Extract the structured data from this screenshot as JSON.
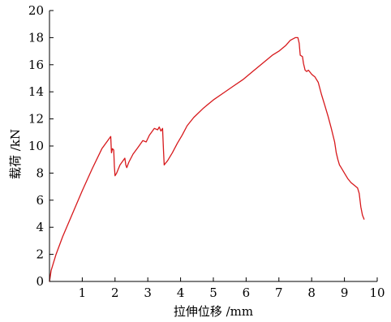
{
  "chart_data": {
    "type": "line",
    "title": "",
    "xlabel": "拉伸位移 /mm",
    "ylabel": "载荷 /kN",
    "xlim": [
      0,
      10
    ],
    "ylim": [
      0,
      20
    ],
    "x_ticks": [
      0,
      1,
      2,
      3,
      4,
      5,
      6,
      7,
      8,
      9,
      10
    ],
    "y_ticks": [
      0,
      2,
      4,
      6,
      8,
      10,
      12,
      14,
      16,
      18,
      20
    ],
    "x_tick_labels": [
      "",
      "1",
      "2",
      "3",
      "4",
      "5",
      "6",
      "7",
      "8",
      "9",
      "10"
    ],
    "y_tick_labels": [
      "0",
      "2",
      "4",
      "6",
      "8",
      "10",
      "12",
      "14",
      "16",
      "18",
      "20"
    ],
    "origin_label": "0",
    "grid": false,
    "legend": "none",
    "colors": {
      "series": "#d7191c",
      "axis": "#000000"
    },
    "series": [
      {
        "x": [
          0,
          0.05,
          0.2,
          0.4,
          0.7,
          1.0,
          1.3,
          1.6,
          1.87,
          1.89,
          1.92,
          1.96,
          1.98,
          2.0,
          2.05,
          2.15,
          2.3,
          2.33,
          2.36,
          2.42,
          2.55,
          2.7,
          2.85,
          2.95,
          3.05,
          3.2,
          3.3,
          3.35,
          3.4,
          3.45,
          3.48,
          3.5,
          3.53,
          3.6,
          3.75,
          3.9,
          4.05,
          4.2,
          4.4,
          4.7,
          5.0,
          5.3,
          5.6,
          5.9,
          6.2,
          6.5,
          6.8,
          7.0,
          7.2,
          7.35,
          7.5,
          7.58,
          7.62,
          7.65,
          7.72,
          7.75,
          7.8,
          7.85,
          7.9,
          8.0,
          8.05,
          8.1,
          8.2,
          8.3,
          8.4,
          8.5,
          8.6,
          8.7,
          8.75,
          8.8,
          8.85,
          8.9,
          9.0,
          9.1,
          9.2,
          9.3,
          9.4,
          9.45,
          9.5,
          9.55,
          9.6
        ],
        "values": [
          0,
          0.8,
          2.0,
          3.3,
          5.0,
          6.7,
          8.3,
          9.8,
          10.7,
          9.5,
          9.8,
          9.7,
          8.5,
          7.8,
          8.0,
          8.6,
          9.1,
          8.6,
          8.4,
          8.8,
          9.4,
          9.9,
          10.4,
          10.3,
          10.8,
          11.3,
          11.2,
          11.4,
          11.1,
          11.3,
          9.6,
          8.6,
          8.7,
          8.9,
          9.5,
          10.2,
          10.8,
          11.5,
          12.1,
          12.8,
          13.4,
          13.9,
          14.4,
          14.9,
          15.5,
          16.1,
          16.7,
          17.0,
          17.4,
          17.8,
          18.0,
          18.0,
          17.6,
          16.7,
          16.6,
          16.1,
          15.6,
          15.5,
          15.6,
          15.3,
          15.2,
          15.1,
          14.7,
          13.8,
          13.0,
          12.2,
          11.3,
          10.3,
          9.5,
          9.0,
          8.6,
          8.4,
          8.0,
          7.6,
          7.3,
          7.1,
          6.9,
          6.5,
          5.5,
          4.9,
          4.6
        ]
      }
    ]
  }
}
